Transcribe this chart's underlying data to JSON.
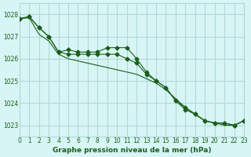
{
  "title": "Graphe pression niveau de la mer (hPa)",
  "background_color": "#d8f5f5",
  "grid_color": "#b0d8d8",
  "line_color": "#1a5e1a",
  "marker_color": "#1a5e1a",
  "xlabel": "Graphe pression niveau de la mer (hPa)",
  "xlim": [
    0,
    23
  ],
  "ylim": [
    1022.5,
    1028.5
  ],
  "yticks": [
    1023,
    1024,
    1025,
    1026,
    1027,
    1028
  ],
  "xticks": [
    0,
    1,
    2,
    3,
    4,
    5,
    6,
    7,
    8,
    9,
    10,
    11,
    12,
    13,
    14,
    15,
    16,
    17,
    18,
    19,
    20,
    21,
    22,
    23
  ],
  "series1_x": [
    0,
    1,
    2,
    3,
    4,
    5,
    6,
    7,
    8,
    9,
    10,
    11,
    12,
    13,
    14,
    15,
    16,
    17,
    18,
    19,
    20,
    21,
    22,
    23
  ],
  "series1_y": [
    1027.8,
    1027.9,
    1027.4,
    1027.0,
    1026.3,
    1026.4,
    1026.3,
    1026.3,
    1026.3,
    1026.5,
    1026.5,
    1026.5,
    1026.0,
    1025.4,
    1025.0,
    1024.7,
    1024.1,
    1023.8,
    1023.5,
    1023.2,
    1023.1,
    1023.1,
    1023.0,
    1023.2
  ],
  "series2_x": [
    0,
    1,
    2,
    3,
    4,
    5,
    6,
    7,
    8,
    9,
    10,
    11,
    12,
    13,
    14,
    15,
    16,
    17,
    18,
    19,
    20,
    21,
    22,
    23
  ],
  "series2_y": [
    1027.8,
    1027.9,
    1027.4,
    1027.0,
    1026.3,
    1026.2,
    1026.2,
    1026.2,
    1026.2,
    1026.2,
    1026.2,
    1026.0,
    1025.8,
    1025.3,
    1025.0,
    1024.7,
    1024.1,
    1023.7,
    1023.5,
    1023.2,
    1023.1,
    1023.1,
    1023.0,
    1023.2
  ],
  "series3_x": [
    0,
    1,
    2,
    3,
    4,
    5,
    6,
    7,
    8,
    9,
    10,
    11,
    12,
    13,
    14,
    15,
    16,
    17,
    18,
    19,
    20,
    21,
    22,
    23
  ],
  "series3_y": [
    1027.8,
    1027.85,
    1027.1,
    1026.8,
    1026.2,
    1026.0,
    1025.9,
    1025.8,
    1025.7,
    1025.6,
    1025.5,
    1025.4,
    1025.3,
    1025.1,
    1024.9,
    1024.6,
    1024.2,
    1023.8,
    1023.5,
    1023.2,
    1023.1,
    1023.0,
    1023.0,
    1023.2
  ]
}
